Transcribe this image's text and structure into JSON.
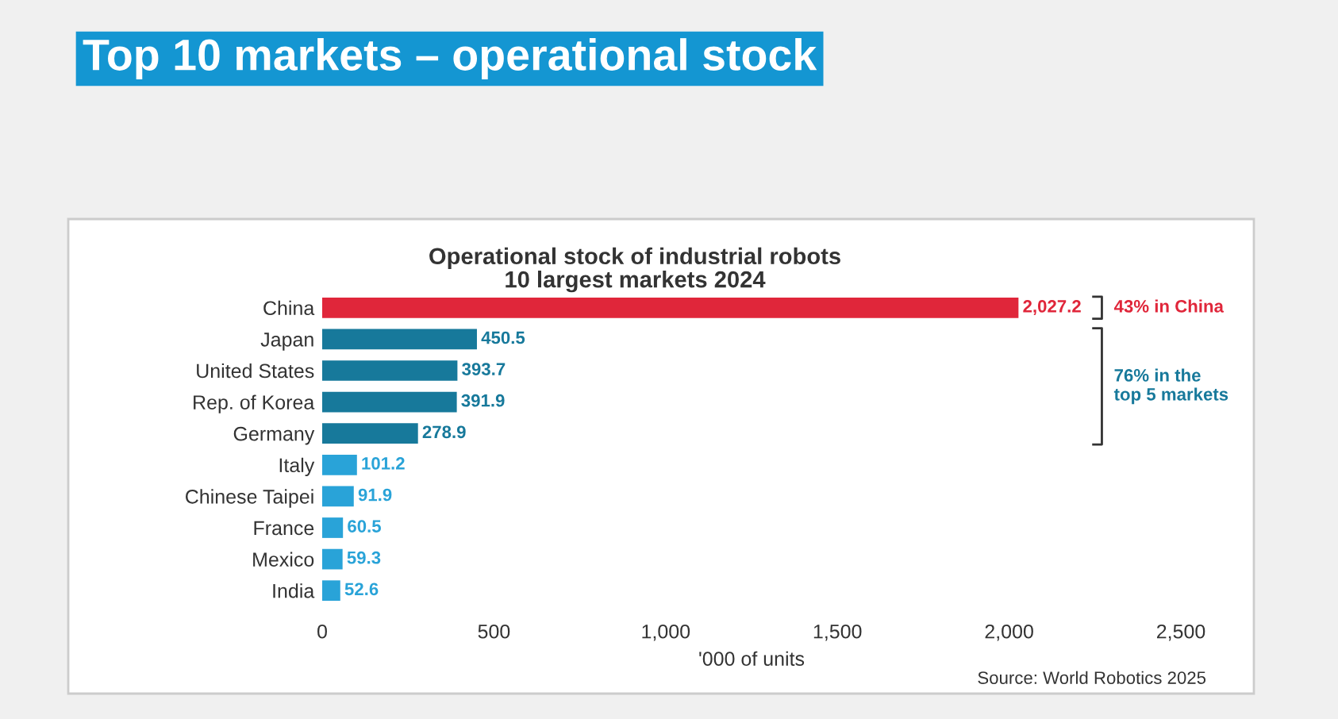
{
  "chart_data": {
    "type": "bar",
    "orientation": "horizontal",
    "title": "Top 10 markets – operational stock",
    "subtitle": "Operational stock of industrial robots\n10 largest markets 2024",
    "xlabel": "'000 of units",
    "categories": [
      "China",
      "Japan",
      "United States",
      "Rep. of Korea",
      "Germany",
      "Italy",
      "Chinese Taipei",
      "France",
      "Mexico",
      "India"
    ],
    "values": [
      2027.2,
      450.5,
      393.7,
      391.9,
      278.9,
      101.2,
      91.9,
      60.5,
      59.3,
      52.6
    ],
    "colors": [
      "#e0263a",
      "#17799b",
      "#17799b",
      "#17799b",
      "#17799b",
      "#29a3d8",
      "#29a3d8",
      "#29a3d8",
      "#29a3d8",
      "#29a3d8"
    ],
    "xlim": [
      0,
      2500
    ],
    "xticks": [
      0,
      500,
      {
        "value": 1000,
        "label": "1,000"
      },
      {
        "value": 1500,
        "label": "1,500"
      },
      {
        "value": 2000,
        "label": "2,000"
      },
      {
        "value": 2500,
        "label": "2,500"
      }
    ],
    "value_labels": [
      "2,027.2",
      "450.5",
      "393.7",
      "391.9",
      "278.9",
      "101.2",
      "91.9",
      "60.5",
      "59.3",
      "52.6"
    ],
    "annotations": [
      "43% in China",
      "76% in the\ntop 5 markets",
      "Source: World Robotics 2025"
    ]
  }
}
